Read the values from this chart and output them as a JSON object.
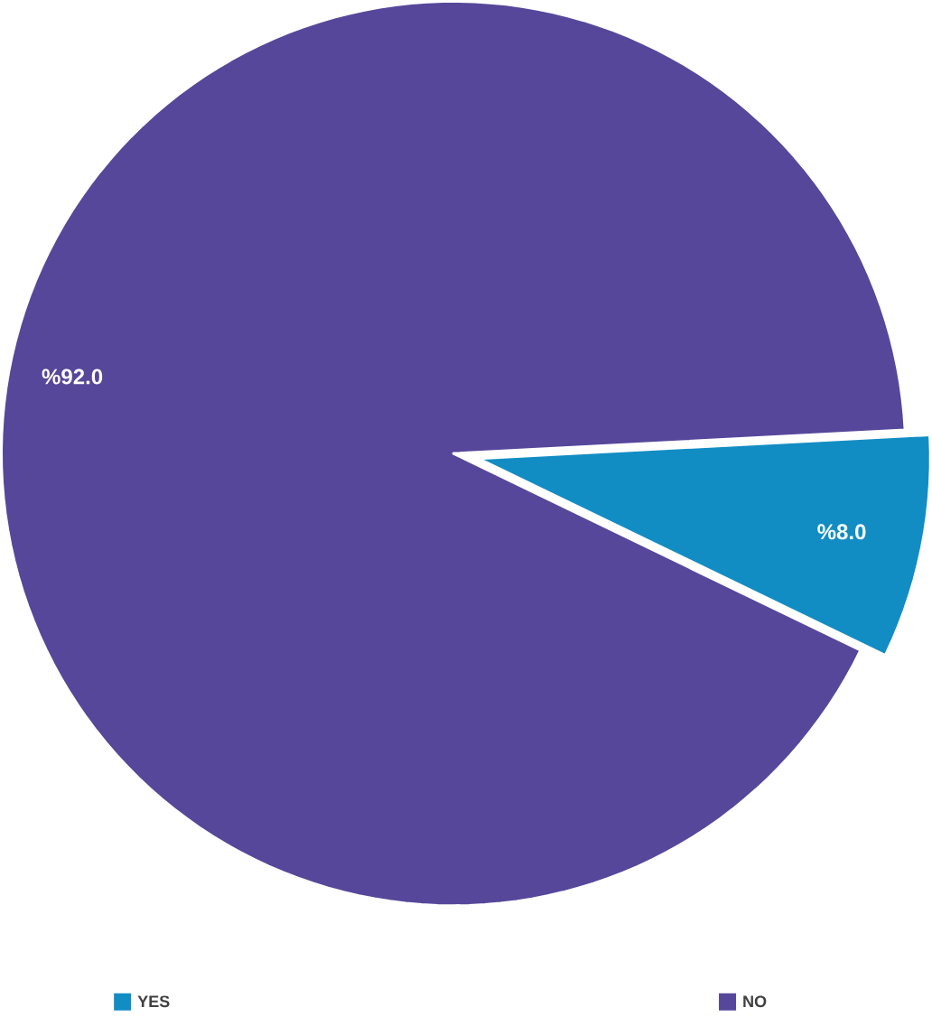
{
  "chart_data": {
    "type": "pie",
    "categories": [
      "YES",
      "NO"
    ],
    "values": [
      8.0,
      92.0
    ],
    "colors": [
      "#128dc4",
      "#56479a"
    ],
    "value_labels": [
      "%8.0",
      "%92.0"
    ],
    "legend": "bottom"
  }
}
